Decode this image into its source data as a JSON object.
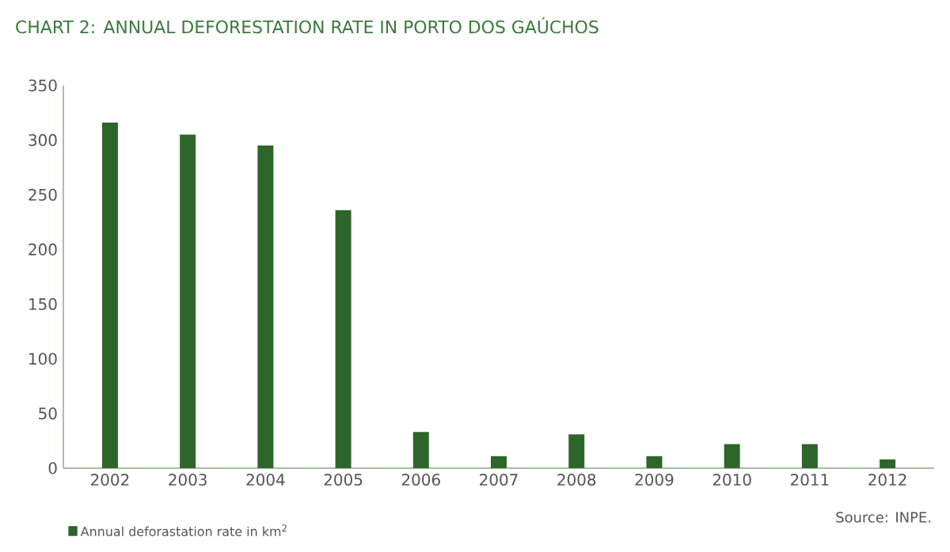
{
  "chart_data": {
    "type": "bar",
    "title": "CHART 2: ANNUAL DEFORESTATION RATE IN PORTO DOS GAÚCHOS",
    "categories": [
      "2002",
      "2003",
      "2004",
      "2005",
      "2006",
      "2007",
      "2008",
      "2009",
      "2010",
      "2011",
      "2012"
    ],
    "series": [
      {
        "name": "Annual deforastation rate in km$^{2}$",
        "color": "#2e652b",
        "values": [
          316,
          305,
          295,
          236,
          33,
          11,
          31,
          11,
          22,
          22,
          8
        ]
      }
    ],
    "ylim": [
      0,
      350
    ],
    "yticks": [
      0,
      50,
      100,
      150,
      200,
      250,
      300,
      350
    ],
    "grid": false,
    "legend": "bottom left",
    "annotations": [
      "Source: INPE."
    ]
  }
}
